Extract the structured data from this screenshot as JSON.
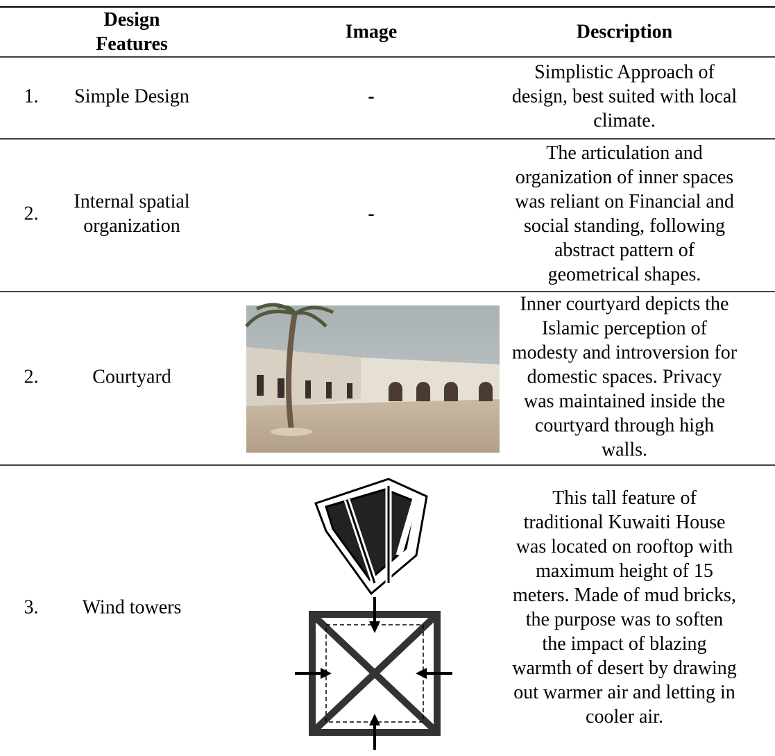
{
  "table": {
    "header": [
      [
        "Design",
        "Features"
      ],
      [
        "Image"
      ],
      [
        "Description"
      ]
    ],
    "rows": [
      {
        "number": "1.",
        "feature": [
          "Simple Design"
        ],
        "image": "-",
        "description": [
          "Simplistic Approach of",
          "design, best suited with local",
          "climate."
        ]
      },
      {
        "number": "2.",
        "feature": [
          "Internal spatial",
          "organization"
        ],
        "image": "-",
        "description": [
          "The articulation and",
          "organization of inner spaces",
          "was reliant on Financial and",
          "social standing, following",
          "abstract pattern of",
          "geometrical shapes."
        ]
      },
      {
        "number": "2.",
        "feature": [
          "Courtyard"
        ],
        "description": [
          "Inner courtyard depicts the",
          "Islamic perception of",
          "modesty and introversion for",
          "domestic spaces. Privacy",
          "was maintained inside the",
          "courtyard through high",
          "walls."
        ]
      },
      {
        "number": "3.",
        "feature": [
          "Wind towers"
        ],
        "description": [
          "This tall feature of",
          "traditional Kuwaiti House",
          "was located on rooftop with",
          "maximum height of 15",
          "meters. Made of mud bricks,",
          "the purpose was to soften",
          "the impact of blazing",
          "warmth of desert by drawing",
          "out warmer air and letting in",
          "cooler air."
        ]
      }
    ]
  }
}
